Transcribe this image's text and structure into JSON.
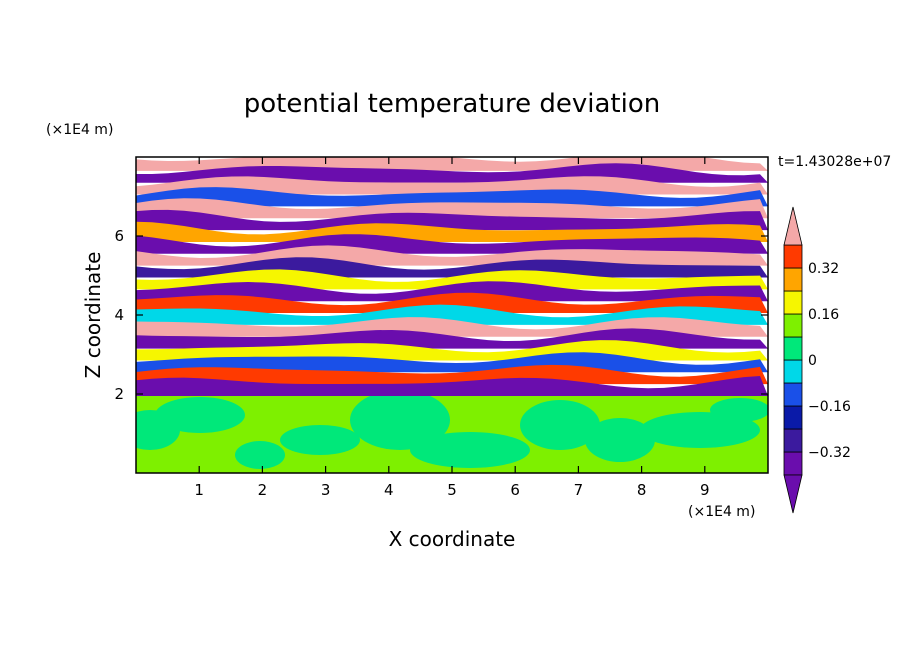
{
  "chart_data": {
    "type": "heatmap",
    "title": "potential temperature deviation",
    "xlabel": "X coordinate",
    "ylabel": "Z coordinate",
    "x_unit_label": "(×1E4 m)",
    "y_unit_label": "(×1E4 m)",
    "time_label": "t=1.43028e+07",
    "xlim": [
      0,
      10
    ],
    "ylim": [
      0,
      8
    ],
    "xticks": [
      "1",
      "2",
      "3",
      "4",
      "5",
      "6",
      "7",
      "8",
      "9"
    ],
    "yticks": [
      "2",
      "4",
      "6"
    ],
    "boundary_z": 2,
    "colorbar": {
      "levels": [
        -0.4,
        -0.32,
        -0.24,
        -0.16,
        -0.08,
        0,
        0.08,
        0.16,
        0.24,
        0.32,
        0.4
      ],
      "labels": [
        "0.32",
        "0.16",
        "0",
        "−0.16",
        "−0.32"
      ],
      "label_values": [
        0.32,
        0.16,
        0,
        -0.16,
        -0.32
      ],
      "extend": "both",
      "colors": [
        "#6a0dad",
        "#3b1a9e",
        "#0a1aa8",
        "#1a50e8",
        "#00d8e8",
        "#00e87a",
        "#7ef000",
        "#f6f600",
        "#ffa500",
        "#ff3a00",
        "#f4a8a8"
      ]
    }
  }
}
